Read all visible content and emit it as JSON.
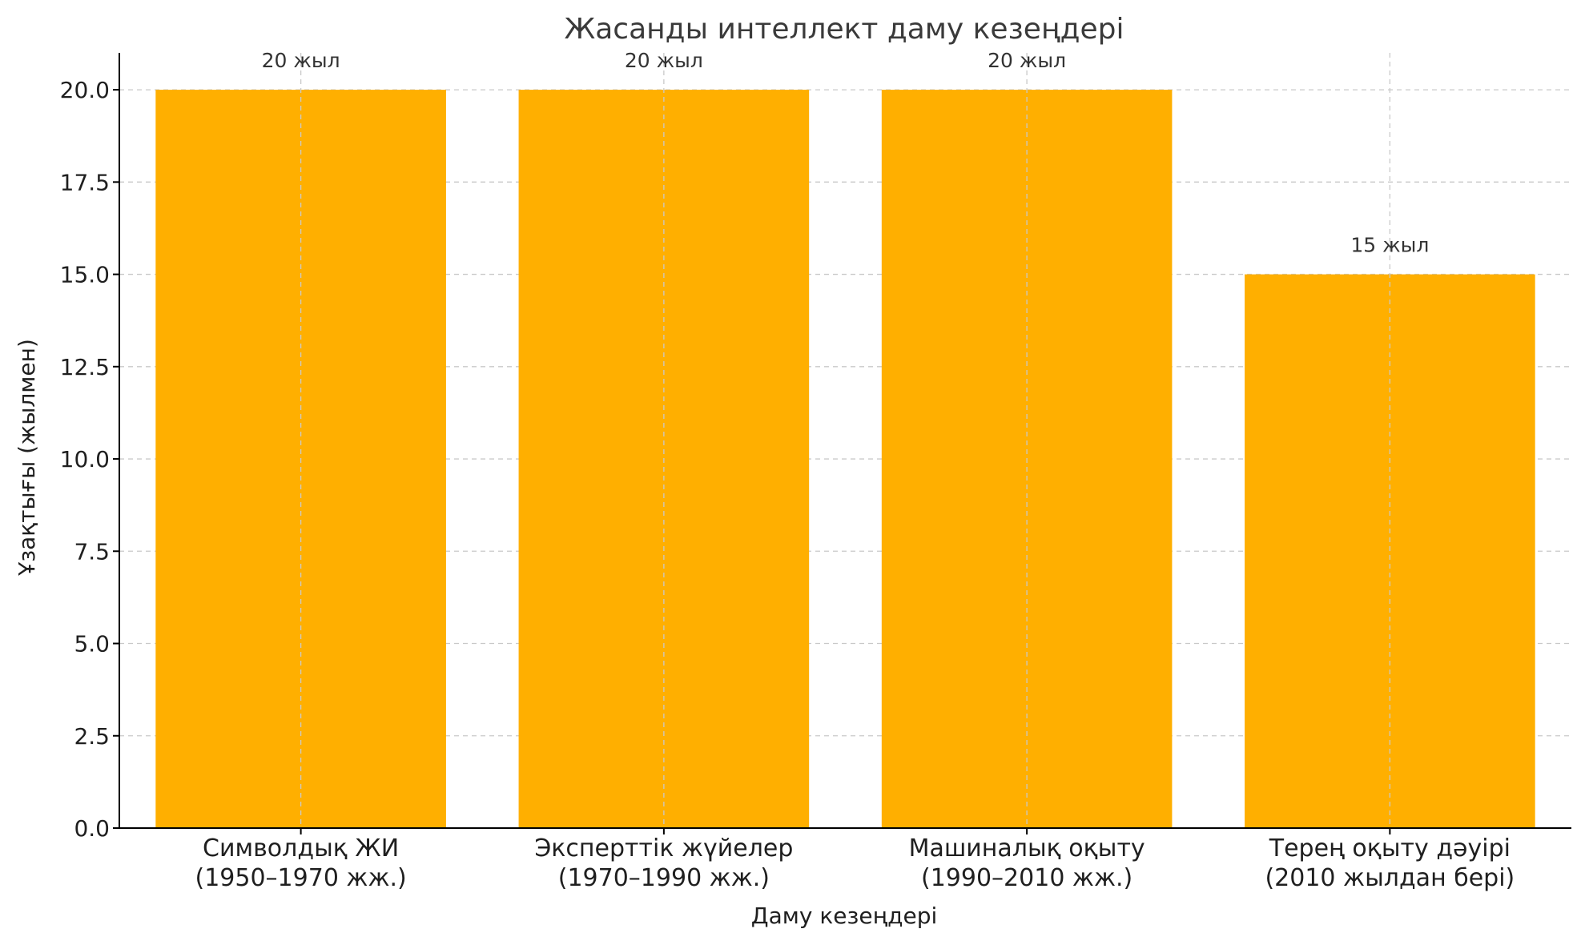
{
  "chart_data": {
    "type": "bar",
    "title": "Жасанды интеллект даму кезеңдері",
    "xlabel": "Даму кезеңдері",
    "ylabel": "Ұзақтығы (жылмен)",
    "categories": [
      [
        "Символдық ЖИ",
        "(1950–1970 жж.)"
      ],
      [
        "Эксперттік жүйелер",
        "(1970–1990 жж.)"
      ],
      [
        "Машиналық оқыту",
        "(1990–2010 жж.)"
      ],
      [
        "Терең оқыту дәуірі",
        "(2010 жылдан бері)"
      ]
    ],
    "values": [
      20,
      20,
      20,
      15
    ],
    "data_labels": [
      "20 жыл",
      "20 жыл",
      "20 жыл",
      "15 жыл"
    ],
    "ylim": [
      0,
      21
    ],
    "yticks": [
      "0.0",
      "2.5",
      "5.0",
      "7.5",
      "10.0",
      "12.5",
      "15.0",
      "17.5",
      "20.0"
    ],
    "grid": true,
    "bar_color": "#FFAF00"
  }
}
